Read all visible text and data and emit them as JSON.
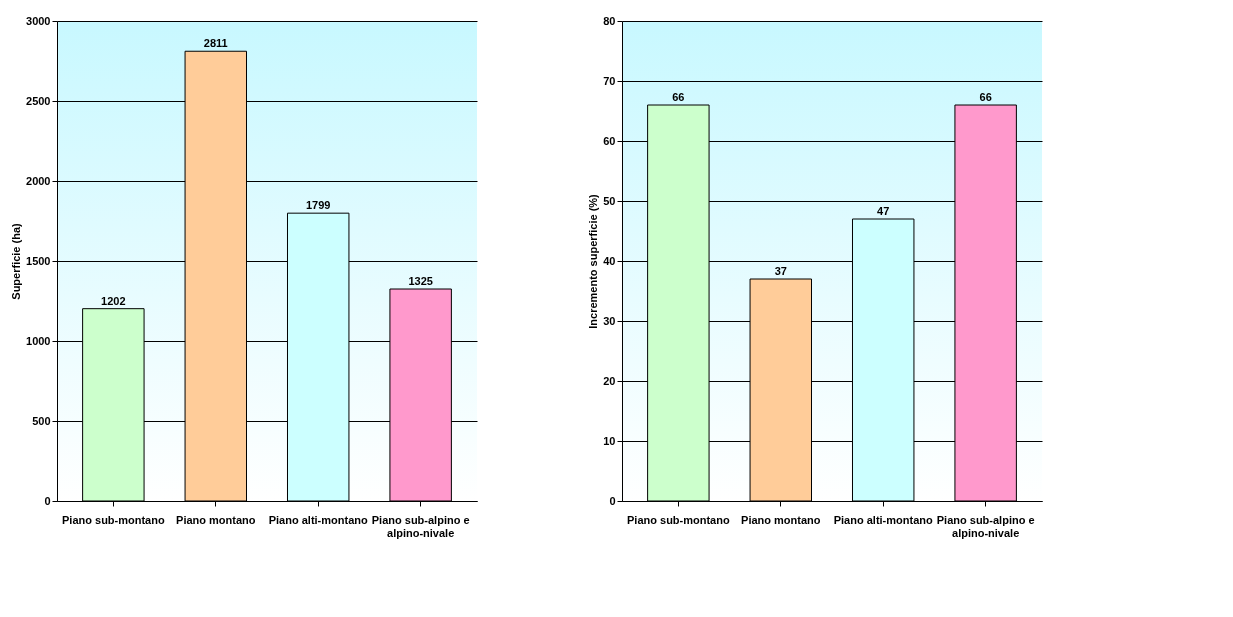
{
  "chart_data": [
    {
      "type": "bar",
      "ylabel": "Superficie (ha)",
      "categories": [
        "Piano sub-montano",
        "Piano montano",
        "Piano alti-montano",
        "Piano sub-alpino e alpino-nivale"
      ],
      "values": [
        1202,
        2811,
        1799,
        1325
      ],
      "colors": [
        "#ccffcc",
        "#ffcc99",
        "#ccffff",
        "#ff99cc"
      ],
      "ylim": [
        0,
        3000
      ],
      "yticks": [
        0,
        500,
        1000,
        1500,
        2000,
        2500,
        3000
      ],
      "grid": "y",
      "data_labels": true
    },
    {
      "type": "bar",
      "ylabel": "Incremento superficie (%)",
      "categories": [
        "Piano sub-montano",
        "Piano montano",
        "Piano alti-montano",
        "Piano sub-alpino e alpino-nivale"
      ],
      "values": [
        66,
        37,
        47,
        66
      ],
      "colors": [
        "#ccffcc",
        "#ffcc99",
        "#ccffff",
        "#ff99cc"
      ],
      "ylim": [
        0,
        80
      ],
      "yticks": [
        0,
        10,
        20,
        30,
        40,
        50,
        60,
        70,
        80
      ],
      "grid": "y",
      "data_labels": true
    }
  ]
}
